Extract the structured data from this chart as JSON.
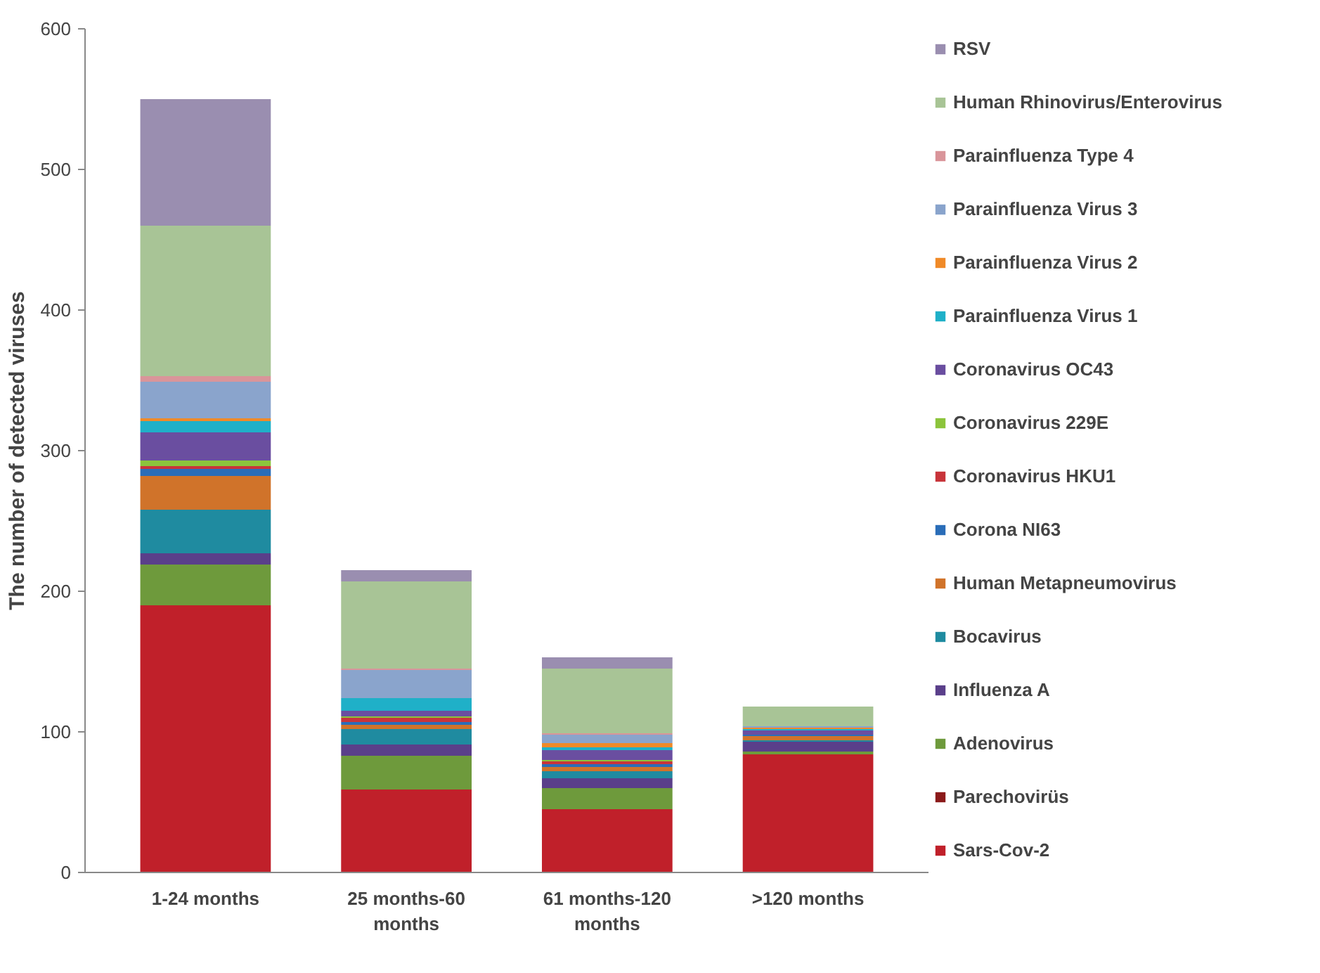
{
  "chart_data": {
    "type": "bar",
    "stacked": true,
    "ylabel": "The number of detected viruses",
    "categories": [
      "1-24 months",
      "25 months-60 months",
      "61 months-120 months",
      ">120 months"
    ],
    "ylim": [
      0,
      600
    ],
    "yticks": [
      0,
      100,
      200,
      300,
      400,
      500,
      600
    ],
    "grid": false,
    "legend": "right",
    "series": [
      {
        "name": "Sars-Cov-2",
        "color": "#c0202a",
        "values": [
          190,
          59,
          45,
          84
        ]
      },
      {
        "name": "Parechovirüs",
        "color": "#8b1a1a",
        "values": [
          0,
          0,
          0,
          0
        ]
      },
      {
        "name": "Adenovirus",
        "color": "#6e9a3c",
        "values": [
          29,
          24,
          15,
          2
        ]
      },
      {
        "name": "Influenza A",
        "color": "#5a3f8a",
        "values": [
          8,
          8,
          7,
          7
        ]
      },
      {
        "name": "Bocavirus",
        "color": "#1f8ba0",
        "values": [
          31,
          11,
          5,
          1
        ]
      },
      {
        "name": "Human Metapneumovirus",
        "color": "#d0732a",
        "values": [
          24,
          3,
          3,
          3
        ]
      },
      {
        "name": "Corona NI63",
        "color": "#2a6db8",
        "values": [
          5,
          2,
          2,
          1
        ]
      },
      {
        "name": "Coronavirus HKU1",
        "color": "#c8343a",
        "values": [
          2,
          3,
          2,
          0
        ]
      },
      {
        "name": "Coronavirus 229E",
        "color": "#8cc43c",
        "values": [
          4,
          1,
          1,
          0
        ]
      },
      {
        "name": "Coronavirus OC43",
        "color": "#6a4ea0",
        "values": [
          20,
          4,
          7,
          3
        ]
      },
      {
        "name": "Parainfluenza Virus 1",
        "color": "#1fb0c8",
        "values": [
          8,
          9,
          2,
          1
        ]
      },
      {
        "name": "Parainfluenza Virus 2",
        "color": "#f08a28",
        "values": [
          2,
          0,
          3,
          1
        ]
      },
      {
        "name": "Parainfluenza Virus 3",
        "color": "#8aa4cc",
        "values": [
          26,
          20,
          6,
          1
        ]
      },
      {
        "name": "Parainfluenza Type 4",
        "color": "#d9959a",
        "values": [
          4,
          1,
          1,
          0
        ]
      },
      {
        "name": "Human Rhinovirus/Enterovirus",
        "color": "#a8c496",
        "values": [
          107,
          62,
          46,
          14
        ]
      },
      {
        "name": "RSV",
        "color": "#9a8eb0",
        "values": [
          90,
          8,
          8,
          0
        ]
      }
    ]
  }
}
